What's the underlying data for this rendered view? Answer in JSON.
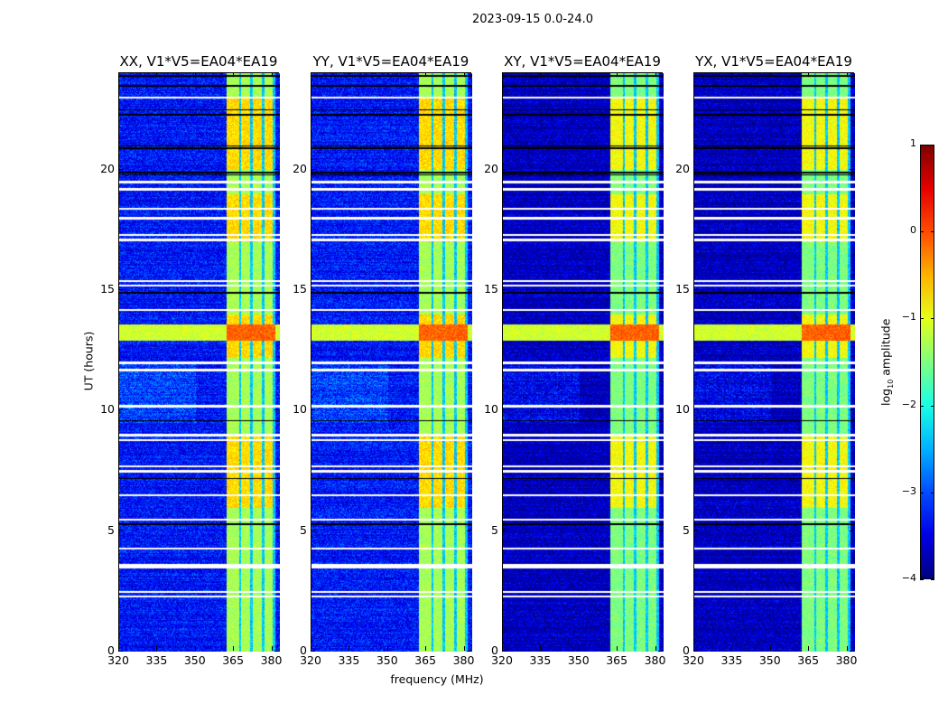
{
  "chart_data": {
    "type": "heatmap",
    "title": "2023-09-15 0.0-24.0",
    "xlabel": "frequency (MHz)",
    "ylabel": "UT (hours)",
    "xlim": [
      320,
      383
    ],
    "ylim": [
      0,
      24
    ],
    "xticks": [
      320,
      335,
      350,
      365,
      380
    ],
    "yticks": [
      0,
      5,
      10,
      15,
      20
    ],
    "panels": [
      {
        "title": "XX, V1*V5=EA04*EA19"
      },
      {
        "title": "YY, V1*V5=EA04*EA19"
      },
      {
        "title": "XY, V1*V5=EA04*EA19"
      },
      {
        "title": "YX, V1*V5=EA04*EA19"
      }
    ],
    "colorbar": {
      "label_prefix": "log",
      "label_sub": "10",
      "label_suffix": " amplitude",
      "range": [
        -4,
        1
      ],
      "ticks": [
        1,
        0,
        -1,
        -2,
        -3,
        -4
      ],
      "tick_labels": [
        "1",
        "0",
        "−1",
        "−2",
        "−3",
        "−4"
      ],
      "colormap": "jet"
    },
    "features": {
      "background_level": -3.3,
      "bright_band_mhz": [
        362,
        381
      ],
      "band_level": -1.3,
      "band_channel_gaps_mhz": [
        367.2,
        371.7,
        376.2,
        380.6
      ],
      "strong_rfi_hours": [
        12.9,
        13.6
      ],
      "strong_rfi_level": -0.5,
      "band_bright_hours": [
        [
          20,
          23
        ],
        [
          17,
          19
        ],
        [
          12.2,
          14
        ],
        [
          6,
          9
        ]
      ],
      "flagged_white_hours": [
        2.3,
        2.5,
        3.5,
        3.6,
        4.3,
        5.5,
        6.5,
        7.5,
        7.7,
        8.8,
        9.0,
        10.2,
        11.7,
        12.0,
        14.2,
        15.2,
        15.4,
        17.1,
        17.3,
        18.0,
        18.4,
        19.2,
        19.5,
        23.0
      ],
      "flagged_black_hours": [
        5.3,
        7.2,
        9.6,
        14.9,
        19.8,
        19.9,
        20.9,
        21.0,
        22.3,
        22.5,
        23.5,
        23.9
      ]
    }
  }
}
